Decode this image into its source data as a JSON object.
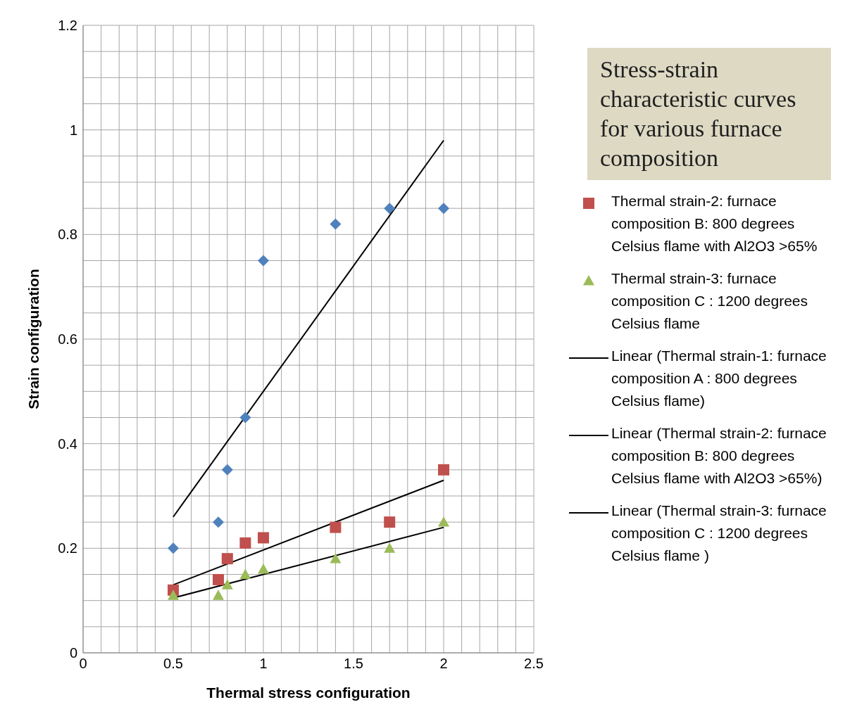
{
  "chart_data": {
    "type": "scatter",
    "title": "Stress-strain characteristic curves for various furnace composition",
    "xlabel": "Thermal stress configuration",
    "ylabel": "Strain configuration",
    "xlim": [
      0,
      2.5
    ],
    "ylim": [
      0,
      1.2
    ],
    "xticks": [
      0,
      {
        "value": 0.1,
        "label": null
      },
      {
        "value": 0.2,
        "label": null
      },
      {
        "value": 0.3,
        "label": null
      },
      {
        "value": 0.4,
        "label": null
      },
      0.5,
      {
        "value": 0.6,
        "label": null
      },
      {
        "value": 0.7,
        "label": null
      },
      {
        "value": 0.8,
        "label": null
      },
      {
        "value": 0.9,
        "label": null
      },
      1,
      {
        "value": 1.1,
        "label": null
      },
      {
        "value": 1.2,
        "label": null
      },
      {
        "value": 1.3,
        "label": null
      },
      {
        "value": 1.4,
        "label": null
      },
      1.5,
      {
        "value": 1.6,
        "label": null
      },
      {
        "value": 1.7,
        "label": null
      },
      {
        "value": 1.8,
        "label": null
      },
      {
        "value": 1.9,
        "label": null
      },
      2,
      {
        "value": 2.1,
        "label": null
      },
      {
        "value": 2.2,
        "label": null
      },
      {
        "value": 2.3,
        "label": null
      },
      {
        "value": 2.4,
        "label": null
      },
      2.5
    ],
    "yticks": [
      0,
      {
        "value": 0.05,
        "label": null
      },
      {
        "value": 0.1,
        "label": null
      },
      {
        "value": 0.15,
        "label": null
      },
      0.2,
      {
        "value": 0.25,
        "label": null
      },
      {
        "value": 0.3,
        "label": null
      },
      {
        "value": 0.35,
        "label": null
      },
      0.4,
      {
        "value": 0.45,
        "label": null
      },
      {
        "value": 0.5,
        "label": null
      },
      {
        "value": 0.55,
        "label": null
      },
      0.6,
      {
        "value": 0.65,
        "label": null
      },
      {
        "value": 0.7,
        "label": null
      },
      {
        "value": 0.75,
        "label": null
      },
      0.8,
      {
        "value": 0.85,
        "label": null
      },
      {
        "value": 0.9,
        "label": null
      },
      {
        "value": 0.95,
        "label": null
      },
      1,
      {
        "value": 1.05,
        "label": null
      },
      {
        "value": 1.1,
        "label": null
      },
      {
        "value": 1.15,
        "label": null
      },
      1.2
    ],
    "grid": true,
    "legend": "right",
    "series": [
      {
        "type": "scatter",
        "marker": "diamond",
        "color": "#4f81bd",
        "x": [
          0.5,
          0.75,
          0.8,
          0.9,
          1,
          1.4,
          1.7,
          2
        ],
        "values": [
          0.2,
          0.25,
          0.35,
          0.45,
          0.75,
          0.82,
          0.85,
          0.85
        ]
      },
      {
        "type": "scatter",
        "marker": "square",
        "name": "Thermal strain-2: furnace composition B: 800 degrees Celsius flame with Al2O3 >65%",
        "color": "#c0504d",
        "x": [
          0.5,
          0.75,
          0.8,
          0.9,
          1,
          1.4,
          1.7,
          2
        ],
        "values": [
          0.12,
          0.14,
          0.18,
          0.21,
          0.22,
          0.24,
          0.25,
          0.35
        ]
      },
      {
        "type": "scatter",
        "marker": "triangle",
        "name": "Thermal strain-3: furnace composition C : 1200 degrees Celsius flame",
        "color": "#9bbb59",
        "x": [
          0.5,
          0.75,
          0.8,
          0.9,
          1,
          1.4,
          1.7,
          2
        ],
        "values": [
          0.11,
          0.11,
          0.13,
          0.15,
          0.16,
          0.18,
          0.2,
          0.25
        ]
      },
      {
        "type": "line",
        "marker": "none",
        "name": "Linear (Thermal strain-1: furnace composition A : 800 degrees Celsius flame)",
        "color": "#000000",
        "x": [
          0.5,
          2
        ],
        "values": [
          0.26,
          0.98
        ]
      },
      {
        "type": "line",
        "marker": "none",
        "name": "Linear (Thermal strain-2: furnace composition B: 800 degrees Celsius flame with Al2O3 >65%)",
        "color": "#000000",
        "x": [
          0.5,
          2
        ],
        "values": [
          0.13,
          0.33
        ]
      },
      {
        "type": "line",
        "marker": "none",
        "name": "Linear (Thermal strain-3: furnace composition C : 1200 degrees Celsius flame )",
        "color": "#000000",
        "x": [
          0.5,
          2
        ],
        "values": [
          0.105,
          0.24
        ]
      }
    ]
  }
}
